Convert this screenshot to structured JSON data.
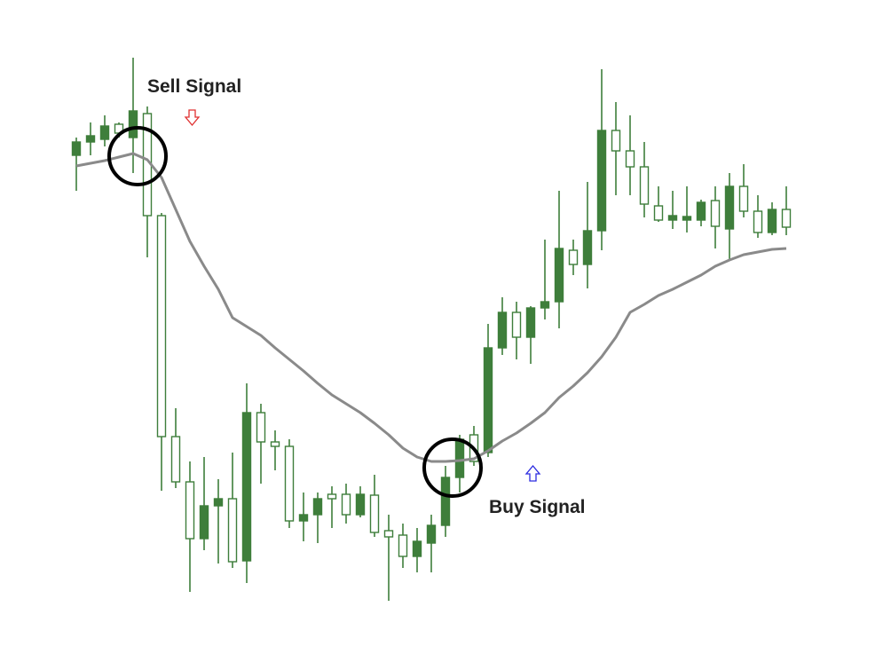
{
  "chart_data": {
    "type": "candlestick",
    "annotations": [
      "Sell Signal",
      "Buy Signal"
    ],
    "ylim": [
      0,
      700
    ],
    "candles": {
      "color": "#3e7e3b",
      "open": [
        525,
        540,
        543,
        560,
        545,
        572,
        457,
        208,
        157,
        93,
        130,
        138,
        68,
        235,
        202,
        197,
        113,
        120,
        143,
        143,
        120,
        142,
        102,
        97,
        73,
        88,
        108,
        162,
        210,
        190,
        308,
        348,
        320,
        353,
        360,
        418,
        402,
        440,
        553,
        530,
        512,
        468,
        452,
        452,
        452,
        474,
        442,
        490,
        462,
        438,
        464
      ],
      "high": [
        545,
        562,
        570,
        562,
        635,
        580,
        460,
        240,
        180,
        185,
        160,
        190,
        268,
        245,
        215,
        205,
        145,
        145,
        152,
        155,
        152,
        165,
        120,
        110,
        105,
        120,
        175,
        210,
        220,
        335,
        365,
        360,
        355,
        430,
        485,
        430,
        495,
        622,
        585,
        570,
        540,
        490,
        485,
        490,
        475,
        490,
        505,
        515,
        480,
        472,
        490
      ],
      "low": [
        485,
        525,
        535,
        545,
        505,
        410,
        147,
        150,
        33,
        80,
        65,
        60,
        43,
        155,
        170,
        105,
        90,
        88,
        105,
        110,
        117,
        95,
        23,
        60,
        55,
        55,
        95,
        145,
        175,
        185,
        300,
        295,
        290,
        340,
        330,
        390,
        375,
        418,
        480,
        480,
        455,
        450,
        442,
        438,
        445,
        420,
        408,
        455,
        432,
        435,
        435
      ],
      "close": [
        540,
        547,
        558,
        550,
        575,
        457,
        208,
        157,
        93,
        130,
        138,
        67,
        235,
        202,
        197,
        113,
        120,
        138,
        138,
        120,
        143,
        100,
        95,
        73,
        90,
        108,
        162,
        205,
        180,
        308,
        348,
        320,
        353,
        360,
        420,
        402,
        440,
        553,
        530,
        512,
        470,
        452,
        457,
        456,
        472,
        445,
        490,
        462,
        438,
        464,
        444
      ]
    },
    "moving_average": {
      "color": "#8a8a8a",
      "values": [
        513,
        516,
        519,
        523,
        527,
        520,
        500,
        464,
        428,
        400,
        374,
        342,
        332,
        322,
        308,
        295,
        282,
        268,
        255,
        245,
        235,
        223,
        210,
        195,
        185,
        180,
        180,
        181,
        183,
        192,
        203,
        212,
        223,
        235,
        252,
        265,
        280,
        298,
        320,
        348,
        357,
        367,
        374,
        382,
        390,
        400,
        407,
        413,
        416,
        419,
        420
      ]
    }
  }
}
